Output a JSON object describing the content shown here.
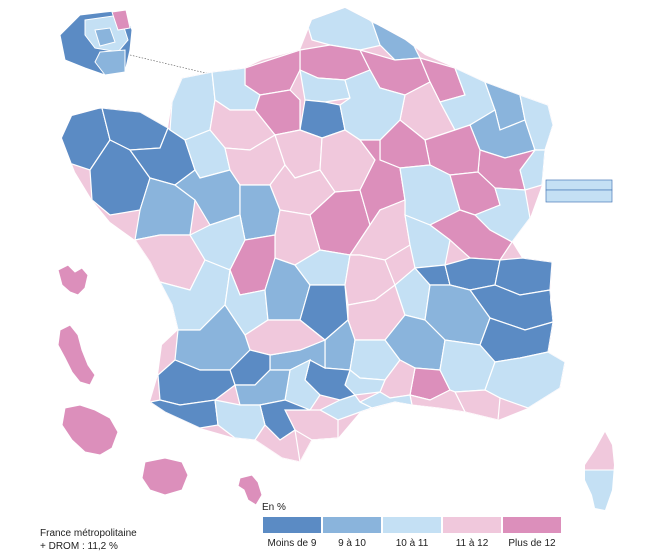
{
  "colors": {
    "moins9": "#5b8bc4",
    "c9a10": "#8ab4dc",
    "c10a11": "#c4e0f4",
    "c11a12": "#f0c8dc",
    "plus12": "#dc8fbb",
    "border": "#ffffff"
  },
  "legend": {
    "unit": "En %",
    "items": [
      {
        "label": "Moins de 9",
        "color": "#5b8bc4"
      },
      {
        "label": "9 à 10",
        "color": "#8ab4dc"
      },
      {
        "label": "10 à 11",
        "color": "#c4e0f4"
      },
      {
        "label": "11 à 12",
        "color": "#f0c8dc"
      },
      {
        "label": "Plus de 12",
        "color": "#dc8fbb"
      }
    ]
  },
  "footnote": {
    "line1": "France métropolitaine",
    "line2": "+ DROM : 11,2 %"
  }
}
